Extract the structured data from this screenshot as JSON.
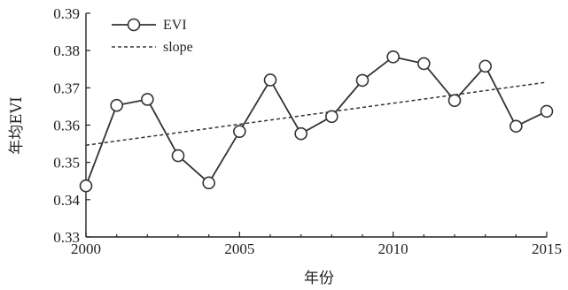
{
  "chart_data": {
    "type": "line",
    "xlabel": "年份",
    "ylabel": "年均EVI",
    "xlim": [
      2000,
      2015
    ],
    "ylim": [
      0.33,
      0.39
    ],
    "xticks": [
      "2000",
      "2005",
      "2010",
      "2015"
    ],
    "yticks": [
      "0.33",
      "0.34",
      "0.35",
      "0.36",
      "0.37",
      "0.38",
      "0.39"
    ],
    "grid": false,
    "legend_position": "top-left",
    "series": [
      {
        "name": "EVI",
        "style": "solid-with-circle-markers",
        "x": [
          2000,
          2001,
          2002,
          2003,
          2004,
          2005,
          2006,
          2007,
          2008,
          2009,
          2010,
          2011,
          2012,
          2013,
          2014,
          2015
        ],
        "values": [
          0.3437,
          0.3653,
          0.3669,
          0.3518,
          0.3445,
          0.3583,
          0.3721,
          0.3577,
          0.3623,
          0.372,
          0.3783,
          0.3765,
          0.3666,
          0.3758,
          0.3597,
          0.3637
        ]
      },
      {
        "name": "slope",
        "style": "dashed-trend",
        "x": [
          2000,
          2015
        ],
        "values": [
          0.3546,
          0.3715
        ]
      }
    ],
    "color": "#333333"
  }
}
